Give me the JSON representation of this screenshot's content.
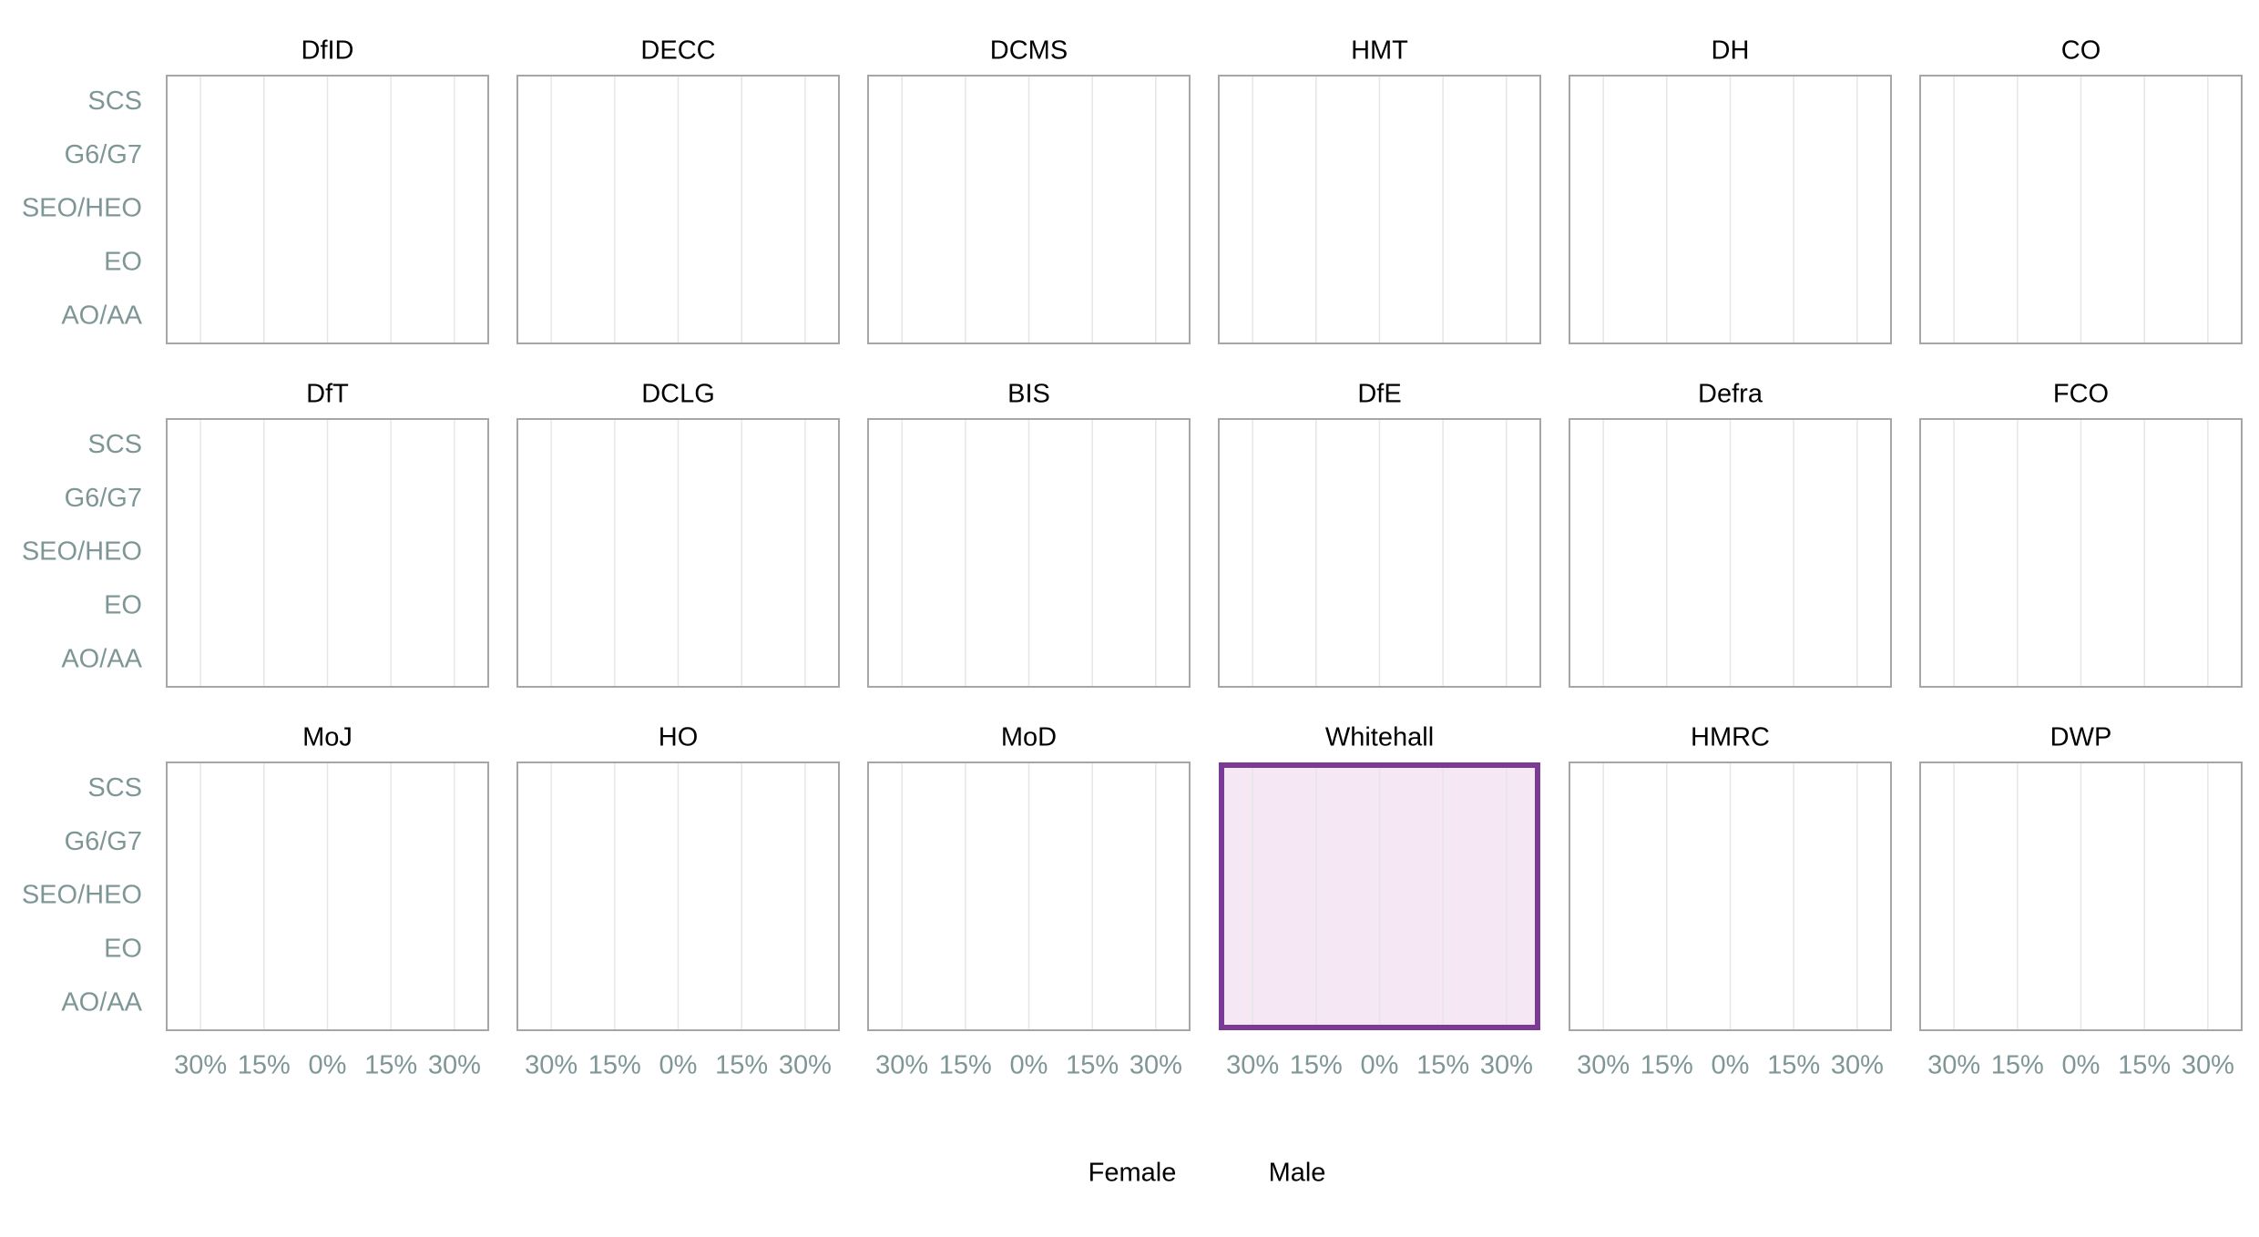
{
  "chart_data": {
    "type": "pyramid",
    "panels": [
      "DfID",
      "DECC",
      "DCMS",
      "HMT",
      "DH",
      "CO",
      "DfT",
      "DCLG",
      "BIS",
      "DfE",
      "Defra",
      "FCO",
      "MoJ",
      "HO",
      "MoD",
      "Whitehall",
      "HMRC",
      "DWP"
    ],
    "highlight": 15,
    "categories": [
      "SCS",
      "G6/G7",
      "SEO/HEO",
      "EO",
      "AO/AA"
    ],
    "series": [
      {
        "name": "Female"
      },
      {
        "name": "Male"
      }
    ],
    "xlim": [
      -38,
      38
    ],
    "xticks": [
      {
        "value": -30,
        "label": "30%"
      },
      {
        "value": -15,
        "label": "15%"
      },
      {
        "value": 0,
        "label": "0%"
      },
      {
        "value": 15,
        "label": "15%"
      },
      {
        "value": 30,
        "label": "30%"
      }
    ],
    "grid": true
  }
}
